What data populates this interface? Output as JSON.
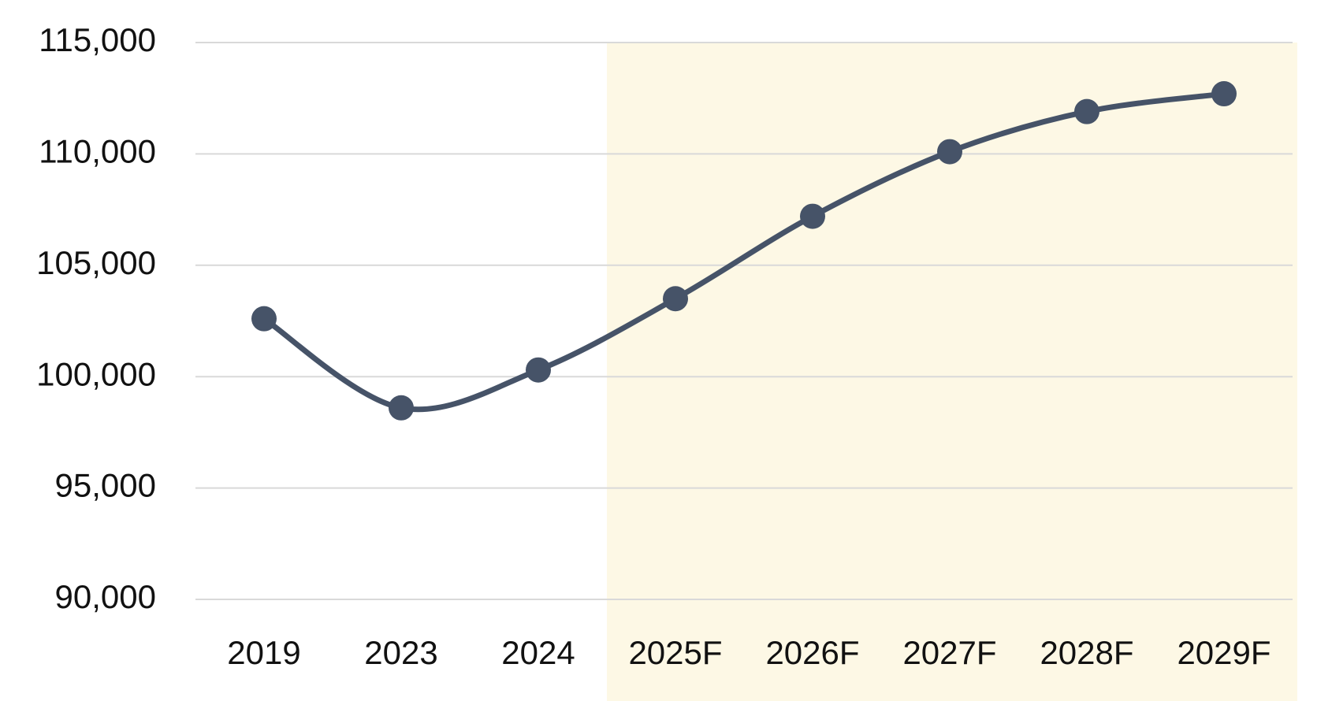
{
  "chart_data": {
    "type": "line",
    "categories": [
      "2019",
      "2023",
      "2024",
      "2025F",
      "2026F",
      "2027F",
      "2028F",
      "2029F"
    ],
    "series": [
      {
        "color": "#465368",
        "values": [
          102600,
          98600,
          100300,
          103500,
          107200,
          110100,
          111900,
          112700
        ]
      }
    ],
    "ylim": [
      90000,
      115000
    ],
    "yticks": [
      {
        "value": 90000,
        "label": "90,000"
      },
      {
        "value": 95000,
        "label": "95,000"
      },
      {
        "value": 100000,
        "label": "100,000"
      },
      {
        "value": 105000,
        "label": "105,000"
      },
      {
        "value": 110000,
        "label": "110,000"
      },
      {
        "value": 115000,
        "label": "115,000"
      }
    ],
    "grid": true,
    "smooth": true,
    "forecast_shading": {
      "start": 3,
      "color": "#fdf8e5"
    }
  }
}
